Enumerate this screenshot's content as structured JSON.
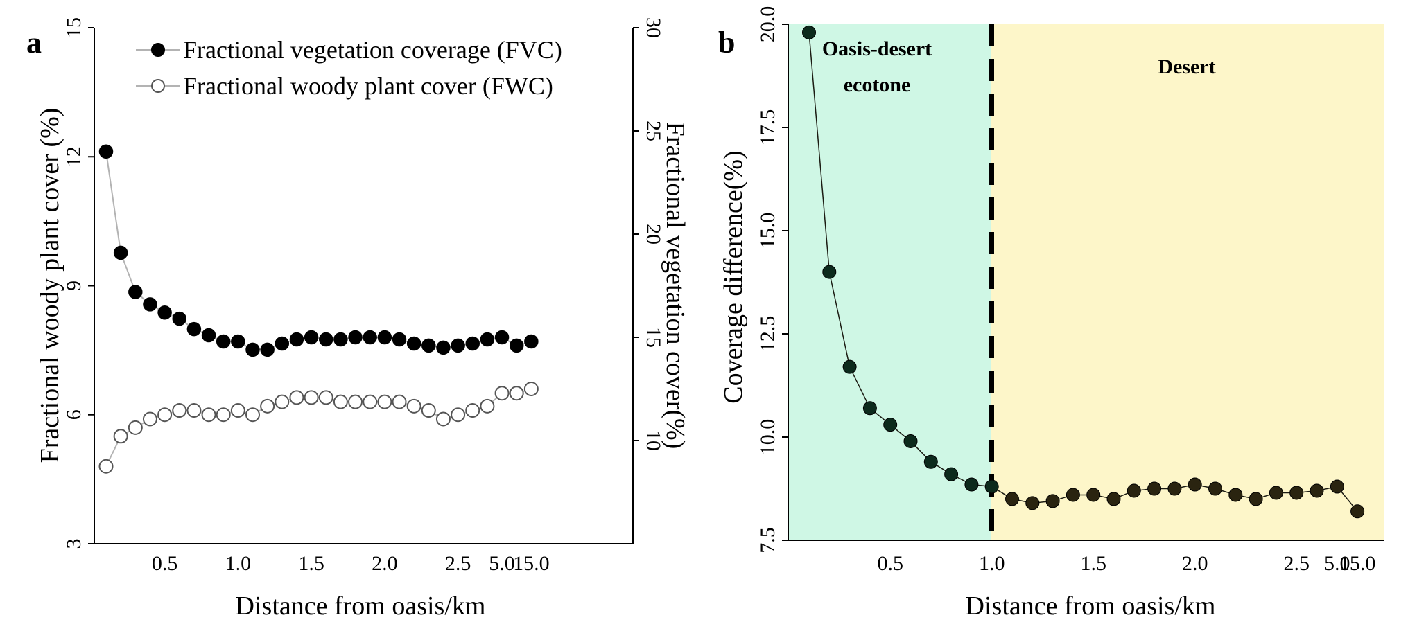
{
  "chart_data": [
    {
      "panel": "a",
      "type": "scatter",
      "x_categories": [
        "0.1",
        "0.2",
        "0.3",
        "0.4",
        "0.5",
        "0.6",
        "0.7",
        "0.8",
        "0.9",
        "1.0",
        "1.1",
        "1.2",
        "1.3",
        "1.4",
        "1.5",
        "1.6",
        "1.7",
        "1.8",
        "1.9",
        "2.0",
        "2.1",
        "2.2",
        "2.3",
        "2.4",
        "2.5",
        "3.0",
        "4.0",
        "5.0",
        "10.0",
        "15.0"
      ],
      "x_tick_labels": [
        "0.5",
        "1.0",
        "1.5",
        "2.0",
        "2.5",
        "5.0",
        "15.0"
      ],
      "x_tick_indices": [
        4,
        9,
        14,
        19,
        24,
        27,
        29
      ],
      "xlabel": "Distance from oasis/km",
      "ylabel_left": "Fractional woody plant cover (%)",
      "ylabel_right": "Fractional vegetation cover(%)",
      "ylim_left": [
        3,
        15
      ],
      "ylim_right": [
        5,
        30
      ],
      "yticks_left": [
        "3",
        "6",
        "9",
        "12",
        "15"
      ],
      "yticks_right": [
        "10",
        "15",
        "20",
        "25",
        "30"
      ],
      "series": [
        {
          "name": "Fractional vegetation coverage (FVC)",
          "axis": "right",
          "marker": "filled",
          "values": [
            24.0,
            19.1,
            17.2,
            16.6,
            16.2,
            15.9,
            15.4,
            15.1,
            14.8,
            14.8,
            14.4,
            14.4,
            14.7,
            14.9,
            15.0,
            14.9,
            14.9,
            15.0,
            15.0,
            15.0,
            14.9,
            14.7,
            14.6,
            14.5,
            14.6,
            14.7,
            14.9,
            15.0,
            14.6,
            14.8
          ]
        },
        {
          "name": "Fractional woody plant cover (FWC)",
          "axis": "left",
          "marker": "open",
          "values": [
            4.8,
            5.5,
            5.7,
            5.9,
            6.0,
            6.1,
            6.1,
            6.0,
            6.0,
            6.1,
            6.0,
            6.2,
            6.3,
            6.4,
            6.4,
            6.4,
            6.3,
            6.3,
            6.3,
            6.3,
            6.3,
            6.2,
            6.1,
            5.9,
            6.0,
            6.1,
            6.2,
            6.5,
            6.5,
            6.6
          ]
        }
      ]
    },
    {
      "panel": "b",
      "type": "line",
      "x_categories": [
        "0.1",
        "0.2",
        "0.3",
        "0.4",
        "0.5",
        "0.6",
        "0.7",
        "0.8",
        "0.9",
        "1.0",
        "1.1",
        "1.2",
        "1.3",
        "1.4",
        "1.5",
        "1.6",
        "1.7",
        "1.8",
        "1.9",
        "2.0",
        "2.1",
        "2.2",
        "2.3",
        "2.4",
        "2.5",
        "3.0",
        "5.0",
        "15.0"
      ],
      "x_tick_labels": [
        "0.5",
        "1.0",
        "1.5",
        "2.0",
        "2.5",
        "5.0",
        "15.0"
      ],
      "x_tick_indices": [
        4,
        9,
        14,
        19,
        24,
        26,
        27
      ],
      "xlabel": "Distance from oasis/km",
      "ylabel": "Coverage difference(%)",
      "ylim": [
        7.5,
        20.0
      ],
      "yticks": [
        "7.5",
        "10.0",
        "12.5",
        "15.0",
        "17.5",
        "20.0"
      ],
      "boundary_x": "1.0",
      "regions": [
        {
          "name": "Oasis-desert ecotone",
          "color": "#cff7e5"
        },
        {
          "name": "Desert",
          "color": "#fdf6c9"
        }
      ],
      "region_labels": {
        "left_line1": "Oasis-desert",
        "left_line2": "ecotone",
        "right": "Desert"
      },
      "series": [
        {
          "name": "Coverage difference",
          "values": [
            19.8,
            14.0,
            11.7,
            10.7,
            10.3,
            9.9,
            9.4,
            9.1,
            8.85,
            8.8,
            8.5,
            8.4,
            8.45,
            8.6,
            8.6,
            8.5,
            8.7,
            8.75,
            8.75,
            8.85,
            8.75,
            8.6,
            8.5,
            8.65,
            8.65,
            8.7,
            8.8,
            8.2
          ]
        }
      ]
    }
  ]
}
